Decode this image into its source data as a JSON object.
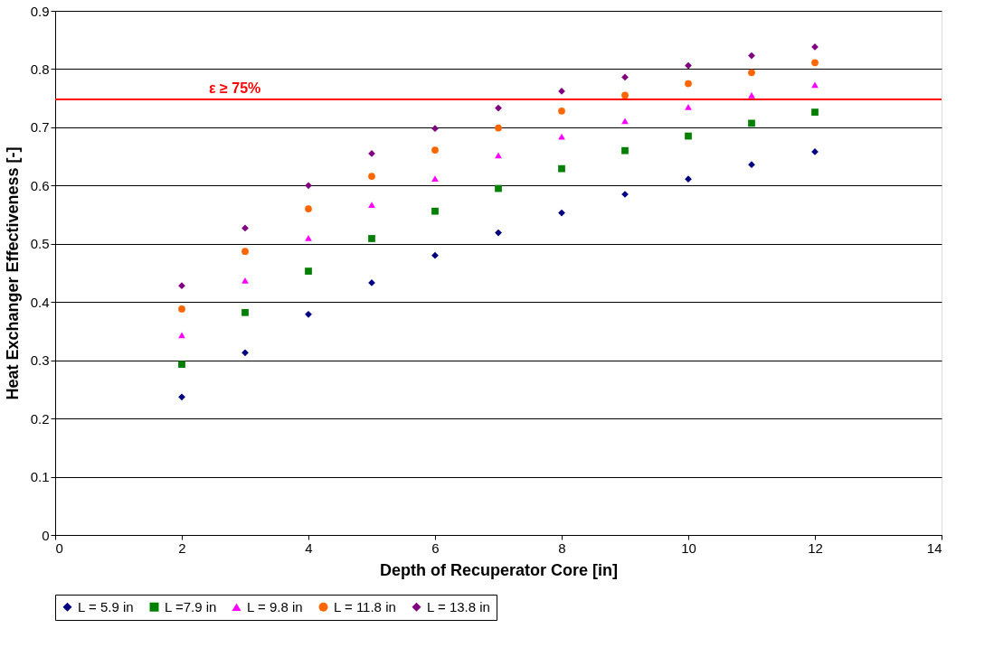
{
  "chart_data": {
    "type": "scatter",
    "xlabel": "Depth of Recuperator Core [in]",
    "ylabel": "Heat Exchanger Effectiveness [-]",
    "x": [
      2,
      3,
      4,
      5,
      6,
      7,
      8,
      9,
      10,
      11,
      12
    ],
    "series": [
      {
        "name": "L = 5.9 in",
        "color": "#000080",
        "marker": "diamond",
        "values": [
          0.237,
          0.313,
          0.379,
          0.433,
          0.48,
          0.519,
          0.553,
          0.585,
          0.611,
          0.636,
          0.658
        ]
      },
      {
        "name": "L =7.9 in",
        "color": "#008000",
        "marker": "square",
        "values": [
          0.293,
          0.382,
          0.453,
          0.509,
          0.556,
          0.595,
          0.629,
          0.66,
          0.685,
          0.707,
          0.726
        ]
      },
      {
        "name": "L = 9.8 in",
        "color": "#ff00ff",
        "marker": "triangle",
        "values": [
          0.343,
          0.437,
          0.51,
          0.567,
          0.612,
          0.652,
          0.684,
          0.711,
          0.735,
          0.755,
          0.773
        ]
      },
      {
        "name": "L = 11.8 in",
        "color": "#ff6600",
        "marker": "circle",
        "values": [
          0.388,
          0.487,
          0.56,
          0.616,
          0.661,
          0.699,
          0.728,
          0.755,
          0.775,
          0.794,
          0.811
        ]
      },
      {
        "name": "L = 13.8 in",
        "color": "#800080",
        "marker": "diamond",
        "values": [
          0.428,
          0.527,
          0.6,
          0.655,
          0.698,
          0.733,
          0.762,
          0.786,
          0.806,
          0.823,
          0.838
        ]
      }
    ],
    "xlim": [
      0,
      14
    ],
    "xticks": [
      0,
      2,
      4,
      6,
      8,
      10,
      12,
      14
    ],
    "ylim": [
      0,
      0.9
    ],
    "yticks": [
      0,
      0.1,
      0.2,
      0.3,
      0.4,
      0.5,
      0.6,
      0.7,
      0.8,
      0.9
    ],
    "ref_lines": [
      {
        "axis": "y",
        "value": 0.748,
        "label": "ε ≥ 75%",
        "color": "#ff0000"
      }
    ],
    "grid": "y",
    "legend": "bottom"
  }
}
